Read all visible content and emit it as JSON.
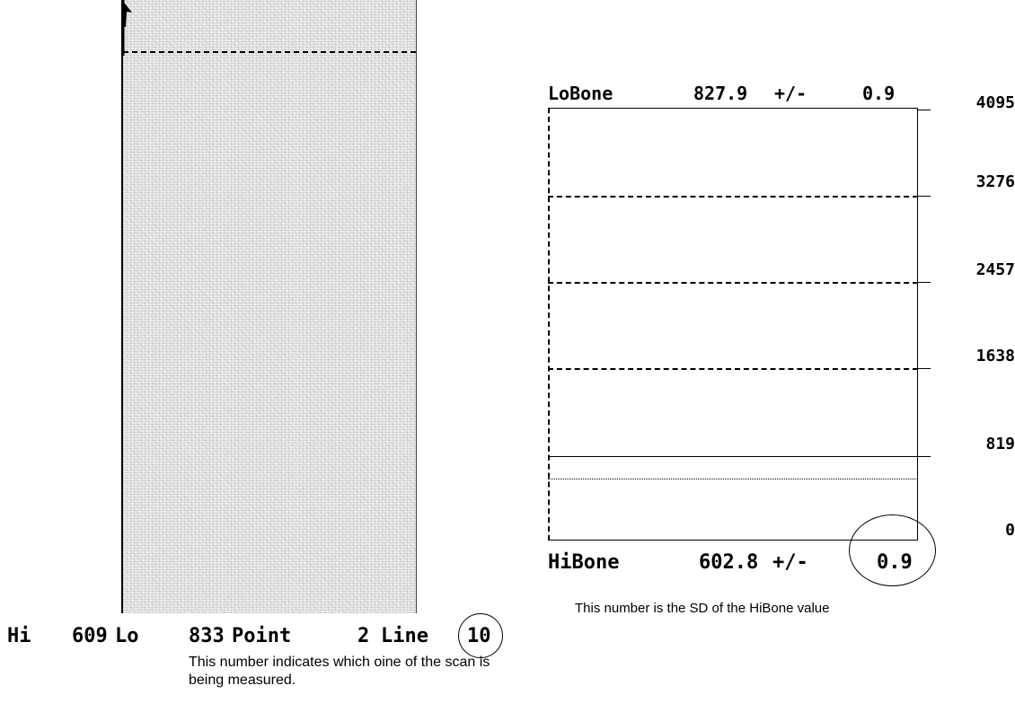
{
  "scan": {
    "status": {
      "hi_label": "Hi",
      "hi_value": "609",
      "lo_label": "Lo",
      "lo_value": "833",
      "point_label": "Point",
      "point_value": "2",
      "line_label": "Line",
      "line_value": "10"
    },
    "annotation": "This number indicates which oine of the scan is being measured."
  },
  "profile": {
    "top": {
      "label": "LoBone",
      "value": "827.9",
      "pm": "+/-",
      "sd": "0.9"
    },
    "bottom": {
      "label": "HiBone",
      "value": "602.8",
      "pm": "+/-",
      "sd": "0.9"
    },
    "y_ticks": [
      "4095",
      "3276",
      "2457",
      "1638",
      "819",
      "0"
    ],
    "annotation": "This number is the SD of the HiBone value"
  }
}
